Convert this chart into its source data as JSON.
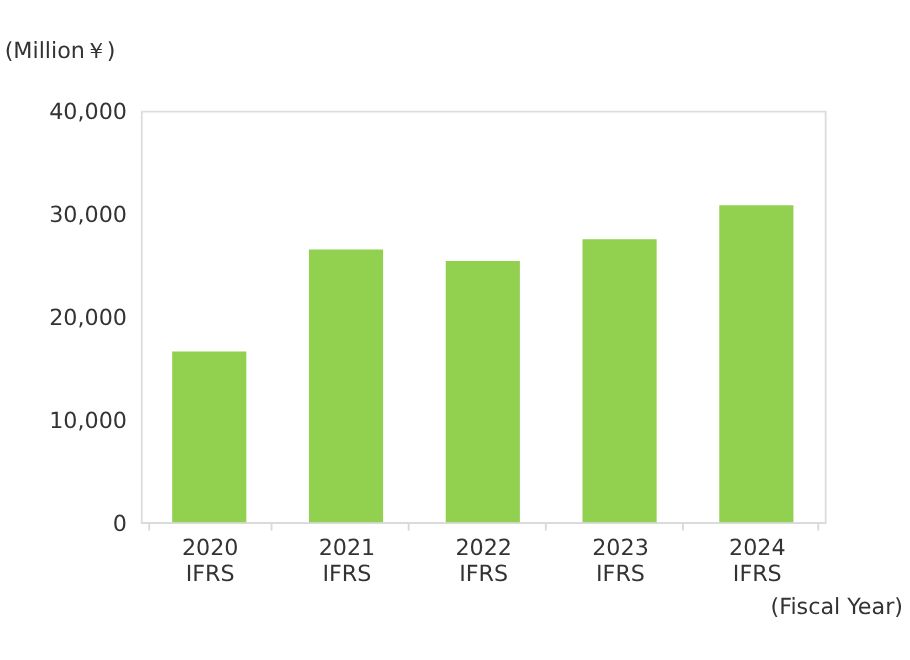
{
  "chart_data": {
    "type": "bar",
    "ylabel": "(Million￥)",
    "xlabel": "(Fiscal Year)",
    "categories": [
      "2020\nIFRS",
      "2021\nIFRS",
      "2022\nIFRS",
      "2023\nIFRS",
      "2024\nIFRS"
    ],
    "values": [
      16600,
      26500,
      25400,
      27500,
      30800
    ],
    "color": "#92d050",
    "ylim": [
      0,
      40000
    ],
    "yticks": [
      0,
      {
        "value": 10000,
        "label": "10,000"
      },
      {
        "value": 20000,
        "label": "20,000"
      },
      {
        "value": 30000,
        "label": "30,000"
      },
      {
        "value": 40000,
        "label": "40,000"
      }
    ],
    "grid": false
  }
}
